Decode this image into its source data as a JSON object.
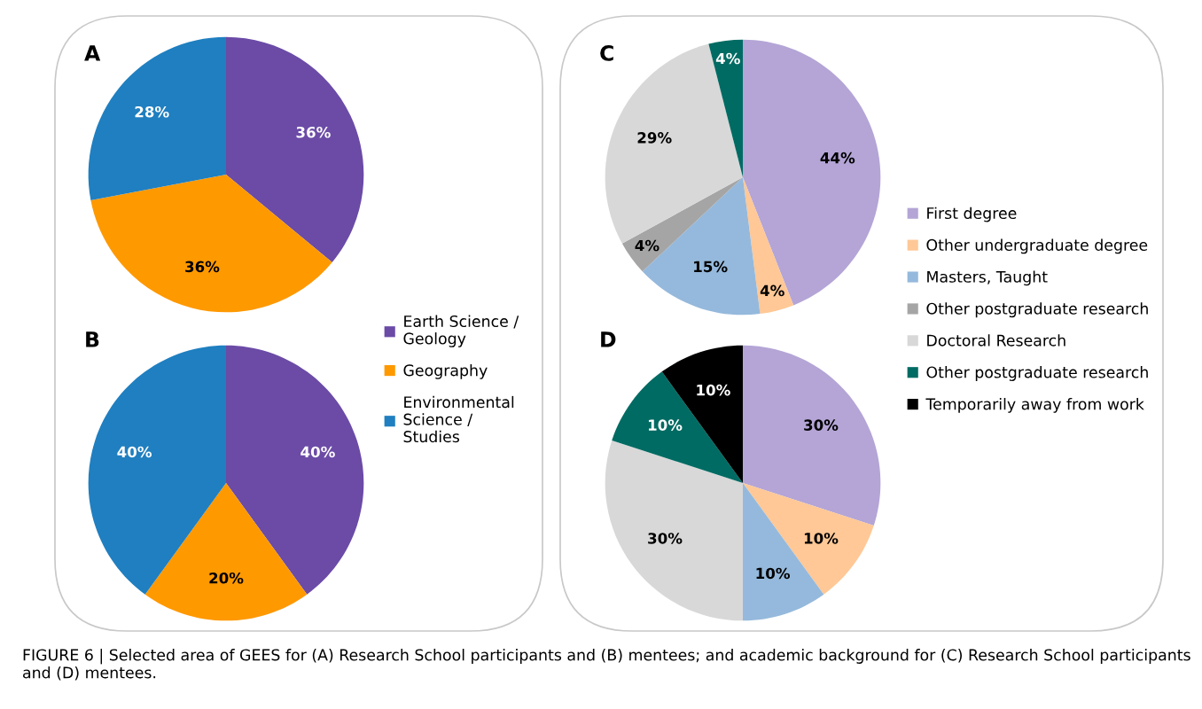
{
  "chart_data": [
    {
      "type": "pie",
      "title": "A",
      "categories": [
        "Earth Science /\nGeology",
        "Geography",
        "Environmental\nScience /\nStudies"
      ],
      "values": [
        36,
        36,
        28
      ],
      "value_labels": [
        "36%",
        "36%",
        "28%"
      ],
      "colors": [
        "#6b4ba6",
        "#ff9900",
        "#1f7fc0"
      ],
      "legend": "bottom right"
    },
    {
      "type": "pie",
      "title": "B",
      "categories": [
        null,
        null,
        null
      ],
      "values": [
        40,
        20,
        40
      ],
      "value_labels": [
        "40%",
        "20%",
        "40%"
      ],
      "colors": [
        "#6b4ba6",
        "#ff9900",
        "#1f7fc0"
      ]
    },
    {
      "type": "pie",
      "title": "C",
      "categories": [
        "First degree",
        "Other undergraduate degree",
        "Masters, Taught",
        "Other postgraduate research",
        "Doctoral Research",
        "Other postgraduate research",
        "Temporarily away from work"
      ],
      "values": [
        44,
        4,
        15,
        4,
        29,
        4,
        0
      ],
      "value_labels": [
        "44%",
        "4%",
        "15%",
        "4%",
        "29%",
        "4%",
        null
      ],
      "colors": [
        "#b4a5d6",
        "#ffc896",
        "#95b9dc",
        "#a5a5a5",
        "#d8d8d8",
        "#006b63",
        "#000000"
      ],
      "legend": "right"
    },
    {
      "type": "pie",
      "title": "D",
      "categories": [
        null,
        null,
        null,
        null,
        null,
        null,
        null
      ],
      "values": [
        30,
        10,
        10,
        0,
        30,
        10,
        10
      ],
      "value_labels": [
        "30%",
        "10%",
        "10%",
        null,
        "30%",
        "10%",
        "10%"
      ],
      "colors": [
        "#b4a5d6",
        "#ffc896",
        "#95b9dc",
        "#a5a5a5",
        "#d8d8d8",
        "#006b63",
        "#000000"
      ],
      "annotations": [
        "FIGURE 6 | Selected area of GEES for (A) Research School participants and (B) mentees; and academic background for (C) Research School participants and (D) mentees."
      ]
    }
  ]
}
